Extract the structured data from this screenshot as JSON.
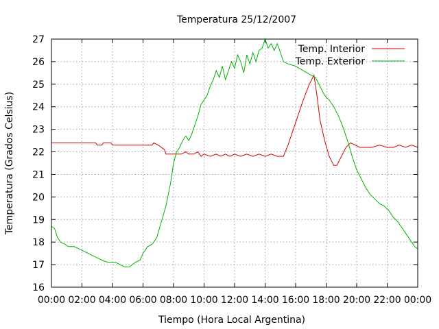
{
  "chart_data": {
    "type": "line",
    "title": "Temperatura 25/12/2007",
    "xlabel": "Tiempo (Hora Local Argentina)",
    "ylabel": "Temperatura (Grados Celsius)",
    "xlim": [
      0,
      24
    ],
    "ylim": [
      16,
      27
    ],
    "x_ticks": [
      0,
      2,
      4,
      6,
      8,
      10,
      12,
      14,
      16,
      18,
      20,
      22,
      24
    ],
    "x_tick_labels": [
      "00:00",
      "02:00",
      "04:00",
      "06:00",
      "08:00",
      "10:00",
      "12:00",
      "14:00",
      "16:00",
      "18:00",
      "20:00",
      "22:00",
      "00:00"
    ],
    "y_ticks": [
      16,
      17,
      18,
      19,
      20,
      21,
      22,
      23,
      24,
      25,
      26,
      27
    ],
    "y_tick_labels": [
      "16",
      "17",
      "18",
      "19",
      "20",
      "21",
      "22",
      "23",
      "24",
      "25",
      "26",
      "27"
    ],
    "grid": true,
    "legend_position": "top-right",
    "series": [
      {
        "name": "Temp. Interior",
        "color": "#cc0000",
        "points": [
          [
            0,
            22.4
          ],
          [
            1,
            22.4
          ],
          [
            2,
            22.4
          ],
          [
            2.9,
            22.4
          ],
          [
            3.0,
            22.3
          ],
          [
            3.3,
            22.3
          ],
          [
            3.4,
            22.4
          ],
          [
            3.9,
            22.4
          ],
          [
            4.0,
            22.3
          ],
          [
            5,
            22.3
          ],
          [
            6,
            22.3
          ],
          [
            6.6,
            22.3
          ],
          [
            6.7,
            22.4
          ],
          [
            7.0,
            22.3
          ],
          [
            7.4,
            22.1
          ],
          [
            7.5,
            21.9
          ],
          [
            8,
            21.9
          ],
          [
            8.5,
            21.9
          ],
          [
            8.8,
            22.0
          ],
          [
            9.0,
            21.9
          ],
          [
            9.3,
            21.9
          ],
          [
            9.6,
            22.0
          ],
          [
            9.8,
            21.8
          ],
          [
            10,
            21.9
          ],
          [
            10.4,
            21.8
          ],
          [
            10.8,
            21.9
          ],
          [
            11.1,
            21.8
          ],
          [
            11.4,
            21.9
          ],
          [
            11.7,
            21.8
          ],
          [
            12,
            21.9
          ],
          [
            12.4,
            21.8
          ],
          [
            12.8,
            21.9
          ],
          [
            13.2,
            21.8
          ],
          [
            13.6,
            21.9
          ],
          [
            14,
            21.8
          ],
          [
            14.4,
            21.9
          ],
          [
            14.8,
            21.8
          ],
          [
            15.2,
            21.8
          ],
          [
            15.5,
            22.3
          ],
          [
            16,
            23.3
          ],
          [
            16.5,
            24.3
          ],
          [
            16.9,
            25.0
          ],
          [
            17.2,
            25.4
          ],
          [
            17.4,
            24.5
          ],
          [
            17.6,
            23.4
          ],
          [
            17.9,
            22.5
          ],
          [
            18.2,
            21.8
          ],
          [
            18.5,
            21.4
          ],
          [
            18.7,
            21.4
          ],
          [
            19.0,
            21.8
          ],
          [
            19.3,
            22.2
          ],
          [
            19.6,
            22.4
          ],
          [
            19.9,
            22.3
          ],
          [
            20.2,
            22.2
          ],
          [
            20.6,
            22.2
          ],
          [
            21,
            22.2
          ],
          [
            21.5,
            22.3
          ],
          [
            22,
            22.2
          ],
          [
            22.4,
            22.2
          ],
          [
            22.8,
            22.3
          ],
          [
            23.2,
            22.2
          ],
          [
            23.6,
            22.3
          ],
          [
            24,
            22.2
          ]
        ]
      },
      {
        "name": "Temp. Exterior",
        "color": "#00b000",
        "points": [
          [
            0,
            18.7
          ],
          [
            0.2,
            18.6
          ],
          [
            0.4,
            18.2
          ],
          [
            0.6,
            18.0
          ],
          [
            0.9,
            17.9
          ],
          [
            1.1,
            17.8
          ],
          [
            1.5,
            17.8
          ],
          [
            1.8,
            17.7
          ],
          [
            2.1,
            17.6
          ],
          [
            2.4,
            17.5
          ],
          [
            2.7,
            17.4
          ],
          [
            3.0,
            17.3
          ],
          [
            3.3,
            17.2
          ],
          [
            3.7,
            17.1
          ],
          [
            4.2,
            17.1
          ],
          [
            4.5,
            17.0
          ],
          [
            4.8,
            16.9
          ],
          [
            5.1,
            16.9
          ],
          [
            5.3,
            17.0
          ],
          [
            5.5,
            17.1
          ],
          [
            5.8,
            17.2
          ],
          [
            6.0,
            17.5
          ],
          [
            6.3,
            17.8
          ],
          [
            6.6,
            17.9
          ],
          [
            6.9,
            18.2
          ],
          [
            7.2,
            18.9
          ],
          [
            7.5,
            19.6
          ],
          [
            7.8,
            20.6
          ],
          [
            8.0,
            21.5
          ],
          [
            8.2,
            22.0
          ],
          [
            8.4,
            22.2
          ],
          [
            8.6,
            22.5
          ],
          [
            8.8,
            22.7
          ],
          [
            9.0,
            22.5
          ],
          [
            9.2,
            22.8
          ],
          [
            9.4,
            23.2
          ],
          [
            9.6,
            23.6
          ],
          [
            9.8,
            24.1
          ],
          [
            10.0,
            24.3
          ],
          [
            10.2,
            24.5
          ],
          [
            10.4,
            24.9
          ],
          [
            10.6,
            25.2
          ],
          [
            10.8,
            25.6
          ],
          [
            11.0,
            25.3
          ],
          [
            11.2,
            25.8
          ],
          [
            11.4,
            25.2
          ],
          [
            11.6,
            25.6
          ],
          [
            11.8,
            26.0
          ],
          [
            12.0,
            25.7
          ],
          [
            12.2,
            26.3
          ],
          [
            12.4,
            26.0
          ],
          [
            12.6,
            25.5
          ],
          [
            12.8,
            26.3
          ],
          [
            13.0,
            25.9
          ],
          [
            13.2,
            26.4
          ],
          [
            13.4,
            26.0
          ],
          [
            13.6,
            26.5
          ],
          [
            13.8,
            26.6
          ],
          [
            14.0,
            27.0
          ],
          [
            14.2,
            26.6
          ],
          [
            14.4,
            26.8
          ],
          [
            14.6,
            26.5
          ],
          [
            14.8,
            26.8
          ],
          [
            15.0,
            26.4
          ],
          [
            15.2,
            26.0
          ],
          [
            15.5,
            25.9
          ],
          [
            16,
            25.8
          ],
          [
            16.5,
            25.6
          ],
          [
            17.0,
            25.4
          ],
          [
            17.3,
            25.3
          ],
          [
            17.6,
            24.9
          ],
          [
            17.9,
            24.5
          ],
          [
            18.2,
            24.3
          ],
          [
            18.5,
            24.0
          ],
          [
            18.8,
            23.6
          ],
          [
            19.1,
            23.1
          ],
          [
            19.4,
            22.5
          ],
          [
            19.7,
            21.8
          ],
          [
            20.0,
            21.2
          ],
          [
            20.3,
            20.8
          ],
          [
            20.6,
            20.4
          ],
          [
            20.9,
            20.1
          ],
          [
            21.2,
            19.9
          ],
          [
            21.5,
            19.7
          ],
          [
            21.8,
            19.6
          ],
          [
            22.1,
            19.4
          ],
          [
            22.4,
            19.1
          ],
          [
            22.7,
            18.9
          ],
          [
            23.0,
            18.6
          ],
          [
            23.3,
            18.3
          ],
          [
            23.6,
            18.0
          ],
          [
            23.8,
            17.8
          ],
          [
            24.0,
            17.7
          ]
        ]
      }
    ]
  }
}
